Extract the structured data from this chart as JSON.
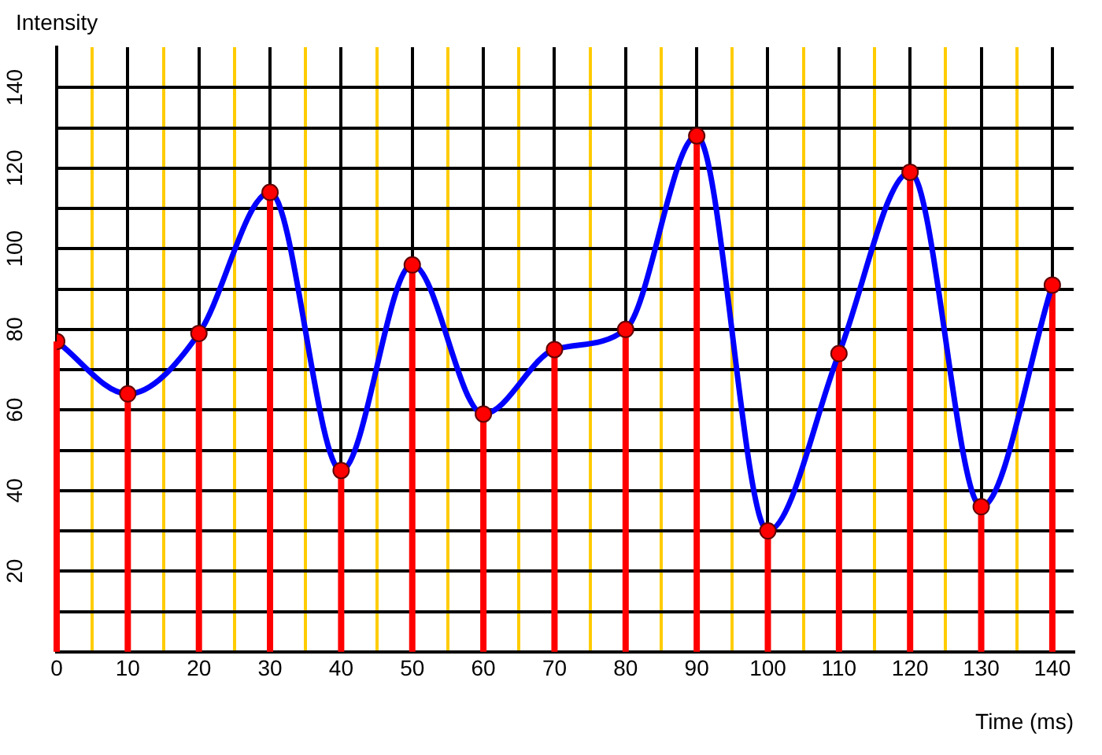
{
  "chart_data": {
    "type": "lollipop",
    "xlabel": "Time (ms)",
    "ylabel": "Intensity",
    "x": [
      0,
      10,
      20,
      30,
      40,
      50,
      60,
      70,
      80,
      90,
      100,
      110,
      120,
      130,
      140
    ],
    "series": [
      {
        "color": "#ff0000",
        "values": [
          77,
          64,
          79,
          114,
          45,
          96,
          59,
          75,
          80,
          128,
          30,
          74,
          119,
          36,
          91
        ]
      },
      {
        "type": "line",
        "marker": "none",
        "color": "#0000ff",
        "values": [
          77,
          64,
          79,
          114,
          45,
          96,
          59,
          75,
          80,
          128,
          30,
          74,
          119,
          36,
          91
        ]
      }
    ],
    "xlim": [
      0,
      143
    ],
    "ylim": [
      0,
      150
    ],
    "xticks": [
      0,
      {
        "value": 5,
        "label": null
      },
      10,
      {
        "value": 15,
        "label": null
      },
      20,
      {
        "value": 25,
        "label": null
      },
      30,
      {
        "value": 35,
        "label": null
      },
      40,
      {
        "value": 45,
        "label": null
      },
      50,
      {
        "value": 55,
        "label": null
      },
      60,
      {
        "value": 65,
        "label": null
      },
      70,
      {
        "value": 75,
        "label": null
      },
      80,
      {
        "value": 85,
        "label": null
      },
      90,
      {
        "value": 95,
        "label": null
      },
      100,
      {
        "value": 105,
        "label": null
      },
      110,
      {
        "value": 115,
        "label": null
      },
      120,
      {
        "value": 125,
        "label": null
      },
      130,
      {
        "value": 135,
        "label": null
      },
      140
    ],
    "yticks": [
      {
        "value": 10,
        "label": null
      },
      20,
      {
        "value": 30,
        "label": null
      },
      40,
      {
        "value": 50,
        "label": null
      },
      60,
      {
        "value": 70,
        "label": null
      },
      80,
      {
        "value": 90,
        "label": null
      },
      100,
      {
        "value": 110,
        "label": null
      },
      120,
      {
        "value": 130,
        "label": null
      },
      140
    ],
    "grid": true,
    "marker": "circle",
    "line_style": "solid",
    "legend": false
  }
}
